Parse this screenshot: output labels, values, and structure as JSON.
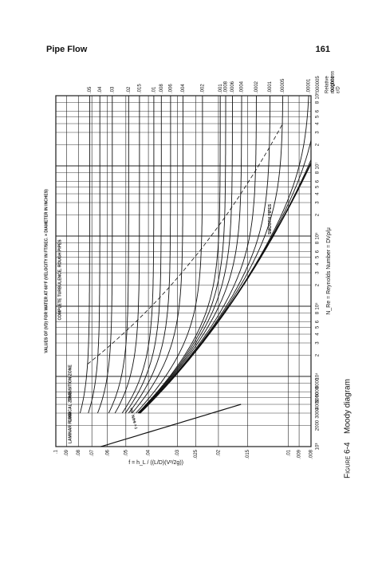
{
  "header": {
    "title": "Pipe Flow",
    "page": "161"
  },
  "figure": {
    "caption_label": "Figure 6-4",
    "caption_text": "Moody diagram",
    "friction_axis_label": "f = h_L / ((L/D)(V²/2g))",
    "reynolds_axis_label": "N_Re = Reynolds Number = DVρ/μ",
    "roughness_axis_label": [
      "Relative",
      "roughness",
      "ε/D"
    ],
    "vd_axis_label": "VALUES OF (VD) FOR WATER AT 60°F (VELOCITY IN FT/SEC. × DIAMETER IN INCHES)",
    "laminar_label": "f = 64/N_Re",
    "region_labels": [
      "LAMINAR FLOW",
      "CRITICAL ZONE",
      "TRANSITION ZONE",
      "COMPLETE TURBULENCE, ROUGH PIPES",
      "SMOOTH PIPES"
    ],
    "flim": [
      0.008,
      0.1
    ],
    "friction_ticks": [
      {
        "value": 0.1,
        "label": ".1"
      },
      {
        "value": 0.09,
        "label": ".09"
      },
      {
        "value": 0.08,
        "label": ".08"
      },
      {
        "value": 0.07,
        "label": ".07"
      },
      {
        "value": 0.06,
        "label": ".06"
      },
      {
        "value": 0.05,
        "label": ".05"
      },
      {
        "value": 0.04,
        "label": ".04"
      },
      {
        "value": 0.03,
        "label": ".03"
      },
      {
        "value": 0.025,
        "label": ".025"
      },
      {
        "value": 0.02,
        "label": ".02"
      },
      {
        "value": 0.015,
        "label": ".015"
      },
      {
        "value": 0.01,
        "label": ".01"
      },
      {
        "value": 0.009,
        "label": ".009"
      },
      {
        "value": 0.008,
        "label": ".008"
      }
    ],
    "relim": [
      1000,
      100000000
    ],
    "reynolds_ticks": [
      {
        "value": 1000,
        "label": "10³"
      },
      2000,
      3000,
      4000,
      5000,
      6000,
      8000,
      {
        "value": 10000,
        "label": "10⁴"
      },
      {
        "value": 20000,
        "label": "2"
      },
      {
        "value": 30000,
        "label": "3"
      },
      {
        "value": 40000,
        "label": "4"
      },
      {
        "value": 50000,
        "label": "5"
      },
      {
        "value": 60000,
        "label": "6"
      },
      {
        "value": 80000,
        "label": "8"
      },
      {
        "value": 100000,
        "label": "10⁵"
      },
      {
        "value": 200000,
        "label": "2"
      },
      {
        "value": 300000,
        "label": "3"
      },
      {
        "value": 400000,
        "label": "4"
      },
      {
        "value": 500000,
        "label": "5"
      },
      {
        "value": 600000,
        "label": "6"
      },
      {
        "value": 800000,
        "label": "8"
      },
      {
        "value": 1000000,
        "label": "10⁶"
      },
      {
        "value": 2000000,
        "label": "2"
      },
      {
        "value": 3000000,
        "label": "3"
      },
      {
        "value": 4000000,
        "label": "4"
      },
      {
        "value": 5000000,
        "label": "5"
      },
      {
        "value": 6000000,
        "label": "6"
      },
      {
        "value": 8000000,
        "label": "8"
      },
      {
        "value": 10000000,
        "label": "10⁷"
      },
      {
        "value": 20000000,
        "label": "2"
      },
      {
        "value": 30000000,
        "label": "3"
      },
      {
        "value": 40000000,
        "label": "4"
      },
      {
        "value": 50000000,
        "label": "5"
      },
      {
        "value": 60000000,
        "label": "6"
      },
      {
        "value": 80000000,
        "label": "8"
      },
      {
        "value": 100000000,
        "label": "10⁸"
      }
    ],
    "roughness": [
      {
        "value": 0.05,
        "label": ".05"
      },
      {
        "value": 0.04,
        "label": ".04"
      },
      {
        "value": 0.03,
        "label": ".03"
      },
      {
        "value": 0.02,
        "label": ".02"
      },
      {
        "value": 0.015,
        "label": ".015"
      },
      {
        "value": 0.01,
        "label": ".01"
      },
      {
        "value": 0.008,
        "label": ".008"
      },
      {
        "value": 0.006,
        "label": ".006"
      },
      {
        "value": 0.004,
        "label": ".004"
      },
      {
        "value": 0.002,
        "label": ".002"
      },
      {
        "value": 0.001,
        "label": ".001"
      },
      {
        "value": 0.0008,
        "label": ".0008"
      },
      {
        "value": 0.0006,
        "label": ".0006"
      },
      {
        "value": 0.0004,
        "label": ".0004"
      },
      {
        "value": 0.0002,
        "label": ".0002"
      },
      {
        "value": 0.0001,
        "label": ".0001"
      },
      {
        "value": 5e-05,
        "label": ".00005"
      },
      {
        "value": 1e-05,
        "label": ".00001"
      },
      {
        "value": 5e-06,
        "label": ".000005"
      },
      {
        "value": 1e-06,
        "label": ".000001"
      }
    ]
  }
}
